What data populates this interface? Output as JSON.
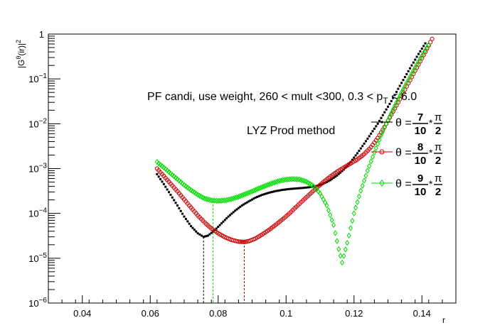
{
  "chart_data": {
    "type": "scatter",
    "title": "",
    "xlabel": "r",
    "ylabel": "|Gθ(ir)|²",
    "ylabel_base": "|G",
    "ylabel_sup": "θ",
    "ylabel_mid": "(ir)|",
    "ylabel_exp": "2",
    "xlim": [
      0.03,
      0.15
    ],
    "ylim": [
      1e-06,
      1
    ],
    "yscale": "log",
    "grid": false,
    "x_ticks": [
      {
        "value": 0.04,
        "label": "0.04"
      },
      {
        "value": 0.06,
        "label": "0.06"
      },
      {
        "value": 0.08,
        "label": "0.08"
      },
      {
        "value": 0.1,
        "label": "0.1"
      },
      {
        "value": 0.12,
        "label": "0.12"
      },
      {
        "value": 0.14,
        "label": "0.14"
      }
    ],
    "y_ticks": [
      {
        "value": 1e-06,
        "base": "10",
        "exp": "−6"
      },
      {
        "value": 1e-05,
        "base": "10",
        "exp": "−5"
      },
      {
        "value": 0.0001,
        "base": "10",
        "exp": "−4"
      },
      {
        "value": 0.001,
        "base": "10",
        "exp": "−3"
      },
      {
        "value": 0.01,
        "base": "10",
        "exp": "−2"
      },
      {
        "value": 0.1,
        "base": "10",
        "exp": "−1"
      },
      {
        "value": 1,
        "base": "1",
        "exp": ""
      }
    ],
    "annotations": {
      "header_pre": "PF candi, use weight, 260 < mult <300, 0.3 < p",
      "header_sub": "T",
      "header_post": " < 6.0",
      "method": "LYZ Prod method"
    },
    "legend_position": "right",
    "series": [
      {
        "theta_num": "7",
        "theta_den": "10",
        "marker": "filled-dot",
        "color": "#000000",
        "minimum": {
          "x": 0.0757,
          "y": 3e-05
        },
        "points": [
          [
            0.062,
            0.00075
          ],
          [
            0.064,
            0.00045
          ],
          [
            0.066,
            0.00026
          ],
          [
            0.068,
            0.00015
          ],
          [
            0.07,
            8.5e-05
          ],
          [
            0.072,
            5.2e-05
          ],
          [
            0.074,
            3.6e-05
          ],
          [
            0.0757,
            3e-05
          ],
          [
            0.077,
            3.2e-05
          ],
          [
            0.079,
            4.2e-05
          ],
          [
            0.081,
            6e-05
          ],
          [
            0.083,
            8.5e-05
          ],
          [
            0.085,
            0.000115
          ],
          [
            0.087,
            0.00015
          ],
          [
            0.089,
            0.000185
          ],
          [
            0.091,
            0.000225
          ],
          [
            0.093,
            0.00026
          ],
          [
            0.095,
            0.00029
          ],
          [
            0.097,
            0.000315
          ],
          [
            0.099,
            0.000335
          ],
          [
            0.101,
            0.00035
          ],
          [
            0.103,
            0.00036
          ],
          [
            0.105,
            0.00037
          ],
          [
            0.107,
            0.000385
          ],
          [
            0.109,
            0.00041
          ],
          [
            0.111,
            0.00046
          ],
          [
            0.113,
            0.00055
          ],
          [
            0.115,
            0.0007
          ],
          [
            0.117,
            0.00095
          ],
          [
            0.119,
            0.0014
          ],
          [
            0.121,
            0.0022
          ],
          [
            0.123,
            0.0036
          ],
          [
            0.125,
            0.006
          ],
          [
            0.127,
            0.01
          ],
          [
            0.129,
            0.018
          ],
          [
            0.131,
            0.032
          ],
          [
            0.133,
            0.06
          ],
          [
            0.135,
            0.11
          ],
          [
            0.137,
            0.2
          ],
          [
            0.139,
            0.36
          ],
          [
            0.141,
            0.62
          ]
        ]
      },
      {
        "theta_num": "8",
        "theta_den": "10",
        "marker": "open-circle",
        "color": "#cc0000",
        "minimum": {
          "x": 0.0877,
          "y": 2.3e-05
        },
        "points": [
          [
            0.062,
            0.001
          ],
          [
            0.064,
            0.00068
          ],
          [
            0.066,
            0.00046
          ],
          [
            0.068,
            0.00031
          ],
          [
            0.07,
            0.000205
          ],
          [
            0.072,
            0.000135
          ],
          [
            0.074,
            9e-05
          ],
          [
            0.076,
            6.3e-05
          ],
          [
            0.078,
            4.6e-05
          ],
          [
            0.08,
            3.6e-05
          ],
          [
            0.082,
            2.95e-05
          ],
          [
            0.084,
            2.55e-05
          ],
          [
            0.086,
            2.35e-05
          ],
          [
            0.0877,
            2.3e-05
          ],
          [
            0.089,
            2.4e-05
          ],
          [
            0.091,
            2.75e-05
          ],
          [
            0.093,
            3.4e-05
          ],
          [
            0.095,
            4.3e-05
          ],
          [
            0.097,
            5.6e-05
          ],
          [
            0.099,
            7.4e-05
          ],
          [
            0.101,
            0.0001
          ],
          [
            0.103,
            0.00014
          ],
          [
            0.105,
            0.000195
          ],
          [
            0.107,
            0.00027
          ],
          [
            0.109,
            0.00037
          ],
          [
            0.111,
            0.0005
          ],
          [
            0.113,
            0.00066
          ],
          [
            0.115,
            0.00085
          ],
          [
            0.117,
            0.00105
          ],
          [
            0.119,
            0.0013
          ],
          [
            0.121,
            0.0016
          ],
          [
            0.123,
            0.0021
          ],
          [
            0.125,
            0.003
          ],
          [
            0.127,
            0.0048
          ],
          [
            0.129,
            0.0085
          ],
          [
            0.131,
            0.016
          ],
          [
            0.133,
            0.03
          ],
          [
            0.135,
            0.058
          ],
          [
            0.137,
            0.11
          ],
          [
            0.139,
            0.21
          ],
          [
            0.141,
            0.4
          ],
          [
            0.143,
            0.78
          ]
        ]
      },
      {
        "theta_num": "9",
        "theta_den": "10",
        "marker": "open-diamond",
        "color": "#00dd00",
        "minimum": {
          "x": 0.1165,
          "y": 8e-06
        },
        "minimum_line_x": 0.0785,
        "minimum_line_y": 0.00019,
        "points": [
          [
            0.062,
            0.0014
          ],
          [
            0.064,
            0.00105
          ],
          [
            0.066,
            0.00078
          ],
          [
            0.068,
            0.00058
          ],
          [
            0.07,
            0.00043
          ],
          [
            0.072,
            0.00033
          ],
          [
            0.074,
            0.00026
          ],
          [
            0.076,
            0.000215
          ],
          [
            0.078,
            0.000195
          ],
          [
            0.08,
            0.00019
          ],
          [
            0.082,
            0.000195
          ],
          [
            0.084,
            0.00021
          ],
          [
            0.086,
            0.000235
          ],
          [
            0.088,
            0.00027
          ],
          [
            0.09,
            0.00031
          ],
          [
            0.092,
            0.00036
          ],
          [
            0.094,
            0.000415
          ],
          [
            0.096,
            0.000475
          ],
          [
            0.098,
            0.00053
          ],
          [
            0.1,
            0.00057
          ],
          [
            0.102,
            0.000585
          ],
          [
            0.104,
            0.00057
          ],
          [
            0.106,
            0.00051
          ],
          [
            0.108,
            0.00041
          ],
          [
            0.11,
            0.00028
          ],
          [
            0.112,
            0.00015
          ],
          [
            0.114,
            5.5e-05
          ],
          [
            0.1155,
            1.6e-05
          ],
          [
            0.1165,
            8e-06
          ],
          [
            0.118,
            2.2e-05
          ],
          [
            0.12,
            0.0001
          ],
          [
            0.122,
            0.00032
          ],
          [
            0.124,
            0.0009
          ],
          [
            0.126,
            0.0023
          ],
          [
            0.128,
            0.0055
          ],
          [
            0.13,
            0.012
          ],
          [
            0.132,
            0.025
          ],
          [
            0.134,
            0.05
          ],
          [
            0.136,
            0.095
          ],
          [
            0.138,
            0.18
          ],
          [
            0.14,
            0.33
          ],
          [
            0.142,
            0.58
          ]
        ]
      }
    ]
  }
}
